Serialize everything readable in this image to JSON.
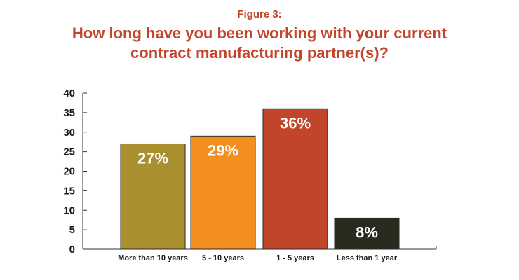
{
  "figure_label": "Figure 3:",
  "chart_data": {
    "type": "bar",
    "title": "How long have you been working with your current contract manufacturing partner(s)?",
    "categories": [
      "More than 10 years",
      "5 - 10 years",
      "1 - 5 years",
      "Less than 1 year"
    ],
    "values": [
      27,
      29,
      36,
      8
    ],
    "data_labels": [
      "27%",
      "29%",
      "36%",
      "8%"
    ],
    "colors": [
      "#a98f2e",
      "#f28f1f",
      "#c1452a",
      "#2b2a1f"
    ],
    "ylim": [
      0,
      40
    ],
    "yticks": [
      0,
      5,
      10,
      15,
      20,
      25,
      30,
      35,
      40
    ],
    "xlabel": "",
    "ylabel": "",
    "grid": false
  }
}
